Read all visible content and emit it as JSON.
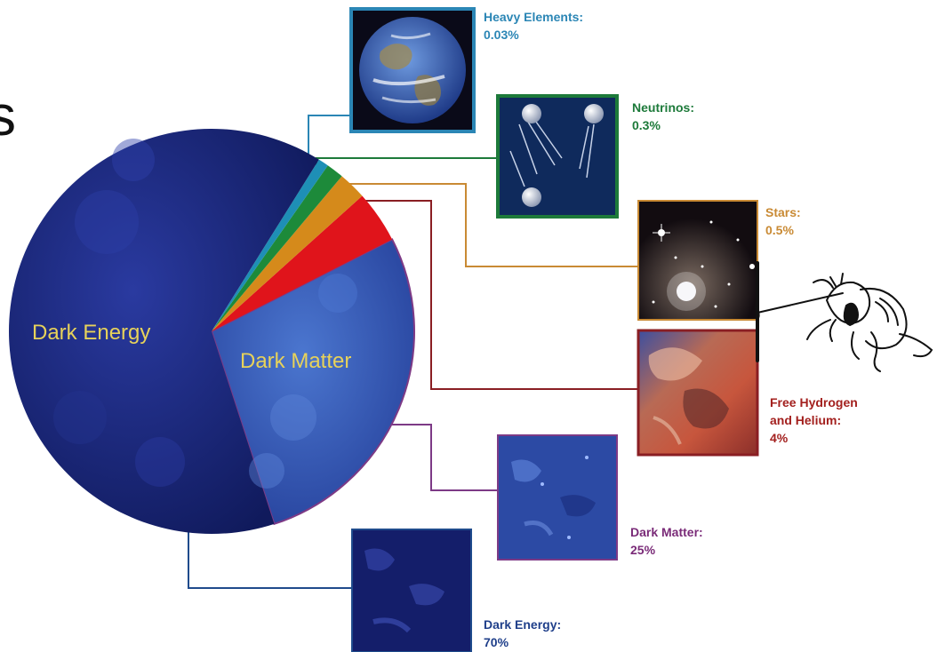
{
  "colors": {
    "heavy_elements": "#1e8fb6",
    "neutrinos": "#1d8a3a",
    "stars": "#d58a1b",
    "hydrogen_helium": "#e0141b",
    "dark_matter": "#2d4ea8",
    "dark_energy": "#14206a",
    "pie_label": "#e7d25a"
  },
  "chart_data": {
    "type": "pie",
    "title": "",
    "legend": "none",
    "slices": [
      {
        "label": "Dark Energy",
        "value": 70,
        "callout": {
          "title": "Dark Energy:",
          "value": "70%"
        },
        "thumbnail": "dark-energy-texture",
        "color": "#14206a",
        "line_color": "#1f4b8c"
      },
      {
        "label": "Dark Matter",
        "value": 25,
        "callout": {
          "title": "Dark Matter:",
          "value": "25%"
        },
        "thumbnail": "dark-matter-texture",
        "color": "#2d4ea8",
        "line_color": "#7d3a86"
      },
      {
        "label": "Free Hydrogen and Helium",
        "value": 4,
        "callout": {
          "title": "Free Hydrogen",
          "title2": "and Helium:",
          "value": "4%"
        },
        "thumbnail": "nebula-image",
        "color": "#e0141b",
        "line_color": "#8a1e23"
      },
      {
        "label": "Stars",
        "value": 0.5,
        "callout": {
          "title": "Stars:",
          "value": "0.5%"
        },
        "thumbnail": "star-cluster-image",
        "color": "#d58a1b",
        "line_color": "#c98a34"
      },
      {
        "label": "Neutrinos",
        "value": 0.3,
        "callout": {
          "title": "Neutrinos:",
          "value": "0.3%"
        },
        "thumbnail": "neutrino-particles-image",
        "color": "#1d8a3a",
        "line_color": "#1d7a3a"
      },
      {
        "label": "Heavy Elements",
        "value": 0.03,
        "callout": {
          "title": "Heavy Elements:",
          "value": "0.03%"
        },
        "thumbnail": "earth-image",
        "color": "#1e8fb6",
        "line_color": "#2b86b5"
      }
    ]
  },
  "decorations": {
    "edge_glyph": "s",
    "sketch": "ant-cartoon-sketch"
  }
}
